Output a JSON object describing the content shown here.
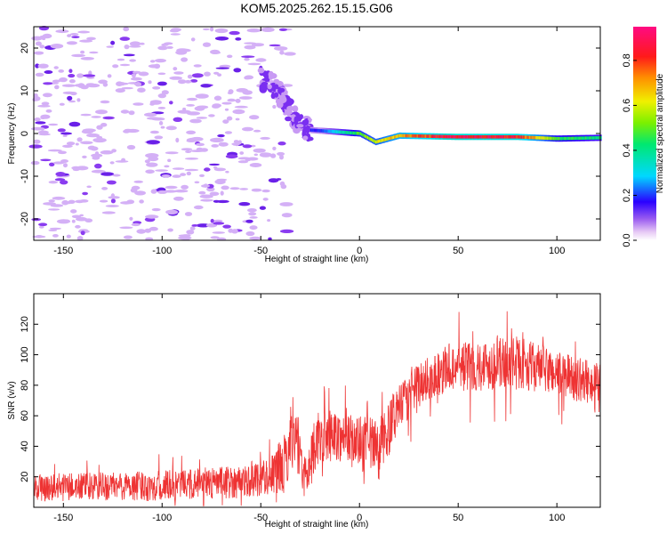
{
  "title": "KOM5.2025.262.15.15.G06",
  "chart_data": [
    {
      "type": "heatmap",
      "xlabel": "Height of straight line (km)",
      "ylabel": "Frequency (Hz)",
      "xlim": [
        -165,
        122
      ],
      "ylim": [
        -25,
        25
      ],
      "xticks": [
        -150,
        -100,
        -50,
        0,
        50,
        100
      ],
      "yticks": [
        -20,
        -10,
        0,
        10,
        20
      ],
      "colorbar": {
        "label": "Normalized spectral amplitude",
        "range": [
          0,
          0.95
        ],
        "ticks": [
          0.0,
          0.2,
          0.4,
          0.6,
          0.8
        ]
      },
      "features": {
        "ridge_frequency_hz": [
          {
            "x": -25,
            "y": 0.8
          },
          {
            "x": -15,
            "y": 0.5
          },
          {
            "x": 0,
            "y": 0.0
          },
          {
            "x": 8,
            "y": -2.0
          },
          {
            "x": 20,
            "y": -0.5
          },
          {
            "x": 50,
            "y": -0.8
          },
          {
            "x": 80,
            "y": -0.8
          },
          {
            "x": 100,
            "y": -1.2
          },
          {
            "x": 122,
            "y": -1.0
          }
        ],
        "ridge_peak_amplitude": [
          {
            "x": -20,
            "y": 0.2
          },
          {
            "x": 0,
            "y": 0.55
          },
          {
            "x": 20,
            "y": 0.75
          },
          {
            "x": 45,
            "y": 0.95
          },
          {
            "x": 80,
            "y": 0.9
          },
          {
            "x": 100,
            "y": 0.5
          },
          {
            "x": 122,
            "y": 0.45
          }
        ],
        "leading_branch": [
          {
            "x": -50,
            "y": 13
          },
          {
            "x": -45,
            "y": 12
          },
          {
            "x": -40,
            "y": 9
          },
          {
            "x": -35,
            "y": 5
          },
          {
            "x": -30,
            "y": 2
          },
          {
            "x": -25,
            "y": 0.8
          }
        ]
      }
    },
    {
      "type": "line",
      "xlabel": "Height of straight line (km)",
      "ylabel": "SNR (v/v)",
      "xlim": [
        -165,
        122
      ],
      "ylim": [
        0,
        140
      ],
      "xticks": [
        -150,
        -100,
        -50,
        0,
        50,
        100
      ],
      "yticks": [
        20,
        40,
        60,
        80,
        100,
        120
      ],
      "series": [
        {
          "name": "SNR",
          "color": "#ee3333",
          "envelope": [
            {
              "x": -165,
              "mean": 13,
              "amplitude": 9
            },
            {
              "x": -100,
              "mean": 14,
              "amplitude": 10
            },
            {
              "x": -60,
              "mean": 17,
              "amplitude": 11
            },
            {
              "x": -45,
              "mean": 21,
              "amplitude": 13
            },
            {
              "x": -38,
              "mean": 28,
              "amplitude": 20
            },
            {
              "x": -33,
              "mean": 55,
              "amplitude": 25
            },
            {
              "x": -28,
              "mean": 18,
              "amplitude": 14
            },
            {
              "x": -22,
              "mean": 44,
              "amplitude": 18
            },
            {
              "x": -12,
              "mean": 47,
              "amplitude": 16
            },
            {
              "x": 0,
              "mean": 42,
              "amplitude": 18
            },
            {
              "x": 10,
              "mean": 38,
              "amplitude": 20
            },
            {
              "x": 20,
              "mean": 65,
              "amplitude": 15
            },
            {
              "x": 30,
              "mean": 80,
              "amplitude": 15
            },
            {
              "x": 45,
              "mean": 92,
              "amplitude": 16
            },
            {
              "x": 60,
              "mean": 93,
              "amplitude": 17
            },
            {
              "x": 80,
              "mean": 95,
              "amplitude": 17
            },
            {
              "x": 100,
              "mean": 88,
              "amplitude": 15
            },
            {
              "x": 122,
              "mean": 80,
              "amplitude": 14
            }
          ]
        }
      ]
    }
  ]
}
